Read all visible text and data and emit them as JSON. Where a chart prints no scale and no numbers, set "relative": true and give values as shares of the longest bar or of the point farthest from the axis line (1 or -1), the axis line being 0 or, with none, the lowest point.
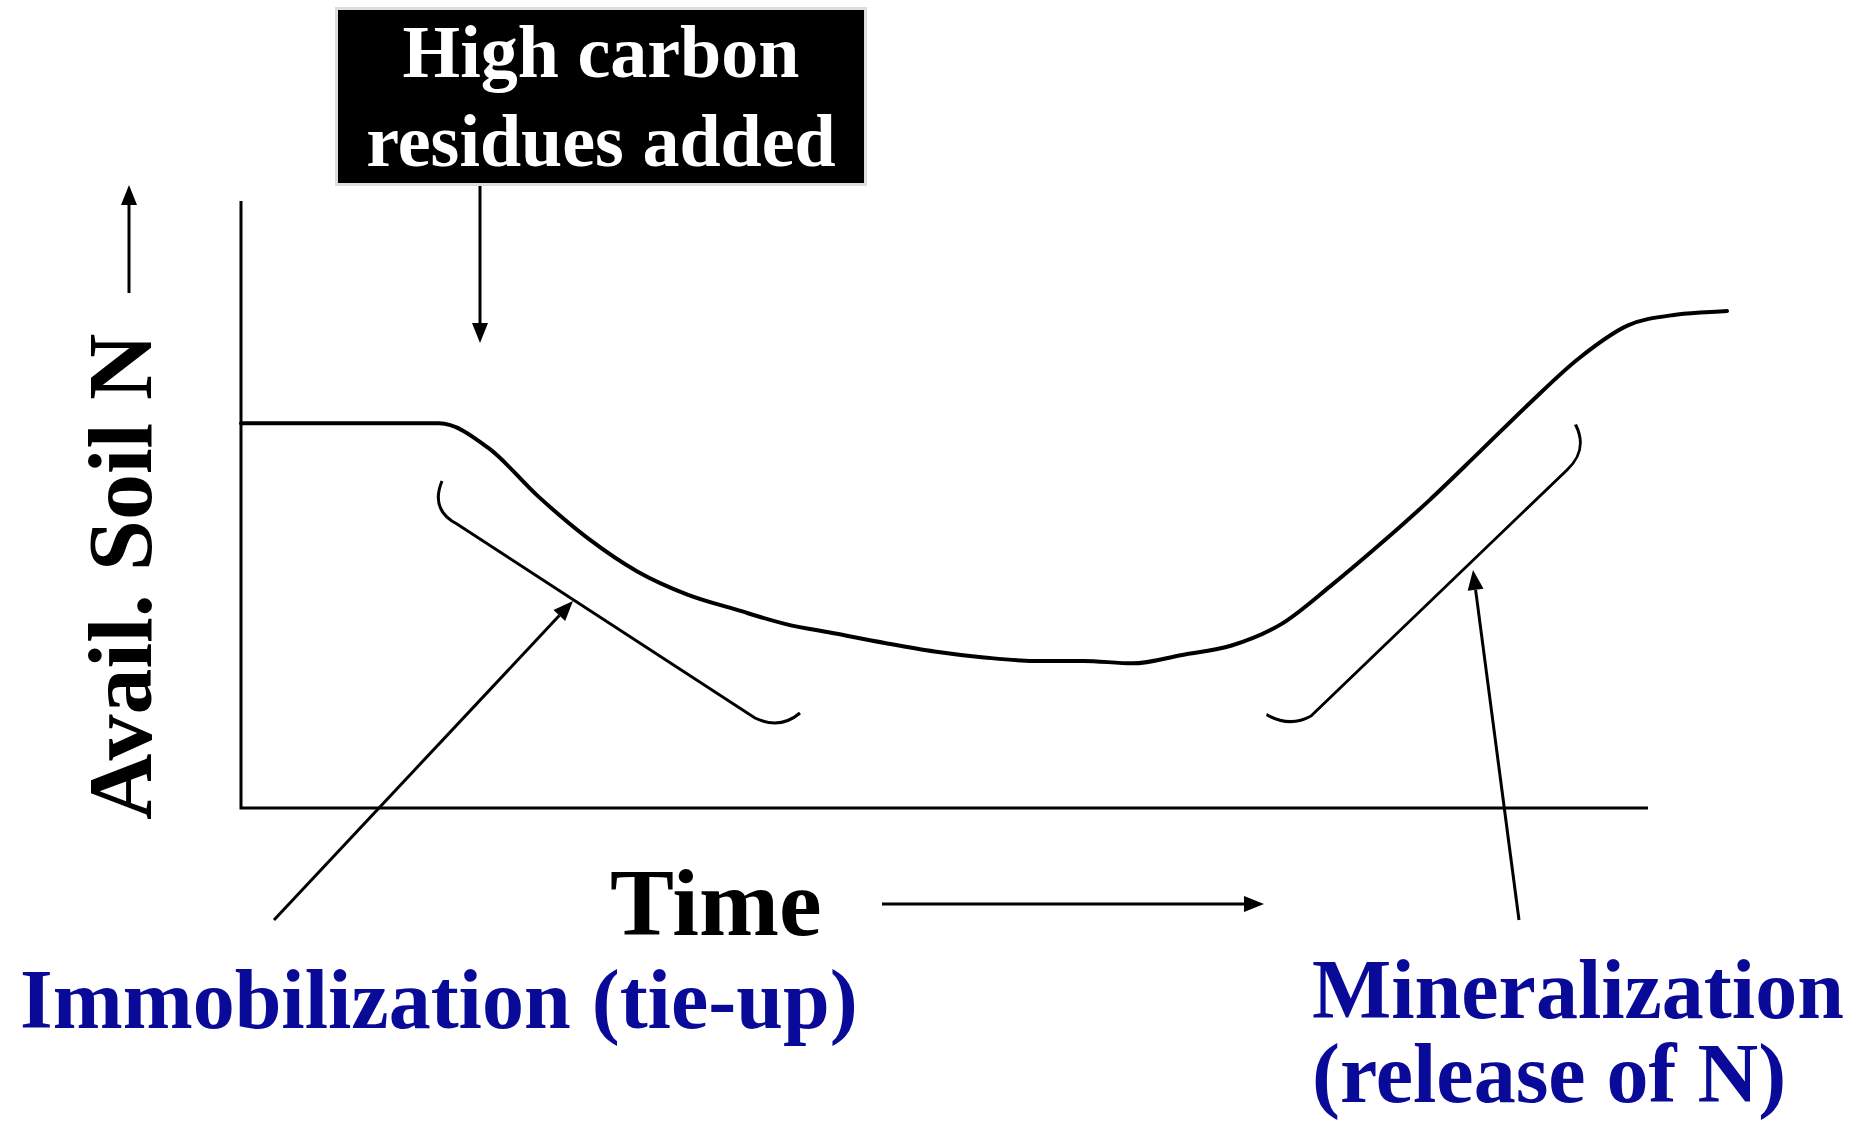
{
  "chart_data": {
    "type": "line",
    "relative": true,
    "xlabel": "Time",
    "ylabel": "Avail. Soil N",
    "marker": "none",
    "color": "#000000",
    "categories": [
      null,
      null,
      null,
      null,
      null,
      null,
      null,
      null,
      null,
      null,
      null,
      null,
      null,
      null,
      null,
      null,
      null,
      null,
      null,
      null,
      null,
      null,
      null,
      null,
      null,
      null,
      null,
      null,
      null,
      null,
      null
    ],
    "values": [
      0.774,
      0.774,
      0.774,
      0.774,
      0.774,
      0.724,
      0.627,
      0.543,
      0.476,
      0.43,
      0.399,
      0.37,
      0.351,
      0.332,
      0.315,
      0.303,
      0.296,
      0.296,
      0.291,
      0.308,
      0.327,
      0.37,
      0.447,
      0.531,
      0.62,
      0.716,
      0.813,
      0.904,
      0.971,
      0.993,
      1
    ],
    "annotations": [
      "High carbon residues added",
      "Immobilization (tie-up)",
      "Mineralization (release of N)"
    ]
  }
}
